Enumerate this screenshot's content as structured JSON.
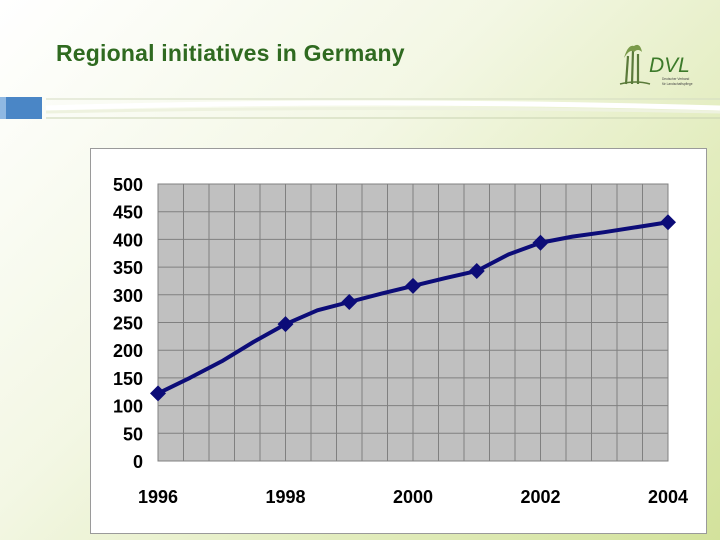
{
  "slide": {
    "title": "Regional initiatives in Germany",
    "logo": {
      "text": "DVL",
      "subtext_line1": "Deutscher Verband",
      "subtext_line2": "für Landschaftspflege"
    }
  },
  "colors": {
    "title": "#2f6a20",
    "plot_background": "#c0c0c0",
    "grid": "#808080",
    "series": "#0c0c78",
    "accent_blue": "#4a86c6"
  },
  "chart_data": {
    "type": "line",
    "title": "",
    "xlabel": "",
    "ylabel": "",
    "xlim": [
      1996,
      2004
    ],
    "ylim": [
      0,
      500
    ],
    "x_ticks": [
      1996,
      1998,
      2000,
      2002,
      2004
    ],
    "y_ticks": [
      0,
      50,
      100,
      150,
      200,
      250,
      300,
      350,
      400,
      450,
      500
    ],
    "grid": true,
    "legend": "none",
    "series": [
      {
        "line": [
          {
            "x": 1996,
            "y": 122
          },
          {
            "x": 1996.5,
            "y": 150
          },
          {
            "x": 1997,
            "y": 180
          },
          {
            "x": 1997.5,
            "y": 215
          },
          {
            "x": 1998,
            "y": 247
          },
          {
            "x": 1998.5,
            "y": 272
          },
          {
            "x": 1999,
            "y": 287
          },
          {
            "x": 1999.5,
            "y": 302
          },
          {
            "x": 2000,
            "y": 316
          },
          {
            "x": 2000.5,
            "y": 330
          },
          {
            "x": 2001,
            "y": 343
          },
          {
            "x": 2001.5,
            "y": 373
          },
          {
            "x": 2002,
            "y": 394
          },
          {
            "x": 2002.5,
            "y": 405
          },
          {
            "x": 2003,
            "y": 413
          },
          {
            "x": 2003.5,
            "y": 422
          },
          {
            "x": 2004,
            "y": 431
          }
        ],
        "markers": [
          {
            "x": 1996,
            "y": 122
          },
          {
            "x": 1998,
            "y": 247
          },
          {
            "x": 1999,
            "y": 287
          },
          {
            "x": 2000,
            "y": 316
          },
          {
            "x": 2001,
            "y": 343
          },
          {
            "x": 2002,
            "y": 394
          },
          {
            "x": 2004,
            "y": 431
          }
        ]
      }
    ]
  }
}
